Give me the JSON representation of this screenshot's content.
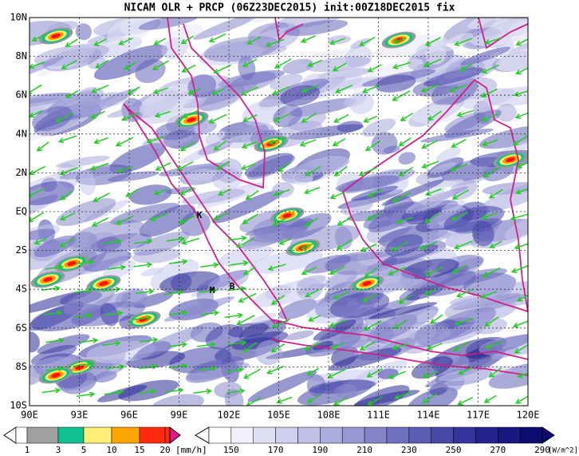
{
  "title": "NICAM OLR + PRCP (06Z23DEC2015) init:00Z18DEC2015 fix",
  "lat_labels": [
    "10N",
    "8N",
    "6N",
    "4N",
    "2N",
    "EQ",
    "2S",
    "4S",
    "6S",
    "8S",
    "10S"
  ],
  "lon_labels": [
    "90E",
    "93E",
    "96E",
    "99E",
    "102E",
    "105E",
    "108E",
    "111E",
    "114E",
    "117E",
    "120E"
  ],
  "markers": [
    "K",
    "M",
    "B"
  ],
  "prcp_colorbar": {
    "labels": [
      "1",
      "3",
      "5",
      "10",
      "15",
      "20"
    ],
    "unit": "[mm/h]"
  },
  "olr_colorbar": {
    "labels": [
      "150",
      "170",
      "190",
      "210",
      "230",
      "250",
      "270",
      "290"
    ],
    "unit": "[W/m^2]"
  }
}
